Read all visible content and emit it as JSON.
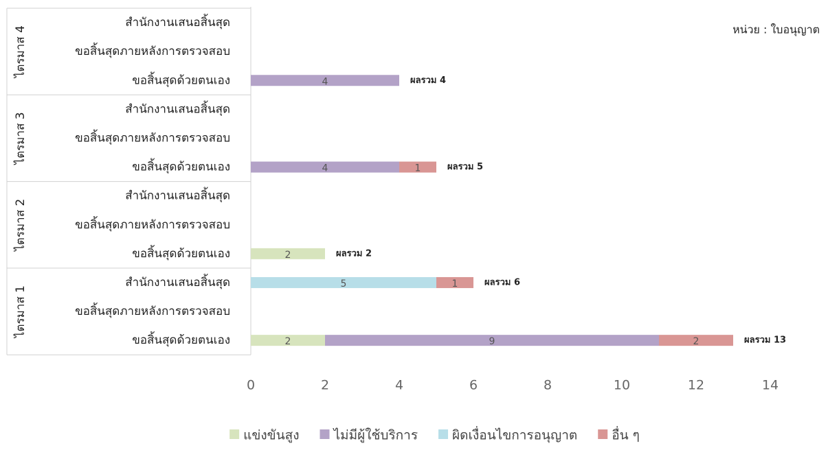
{
  "chart_data": {
    "type": "stacked_bar_horizontal",
    "unit_label": "หน่วย : ใบอนุญาต",
    "groups": [
      "ไตรมาส 4",
      "ไตรมาส 3",
      "ไตรมาส 2",
      "ไตรมาส 1"
    ],
    "categories": [
      "สำนักงานเสนอสิ้นสุด",
      "ขอสิ้นสุดภายหลังการตรวจสอบ",
      "ขอสิ้นสุดด้วยตนเอง",
      "สำนักงานเสนอสิ้นสุด",
      "ขอสิ้นสุดภายหลังการตรวจสอบ",
      "ขอสิ้นสุดด้วยตนเอง",
      "สำนักงานเสนอสิ้นสุด",
      "ขอสิ้นสุดภายหลังการตรวจสอบ",
      "ขอสิ้นสุดด้วยตนเอง",
      "สำนักงานเสนอสิ้นสุด",
      "ขอสิ้นสุดภายหลังการตรวจสอบ",
      "ขอสิ้นสุดด้วยตนเอง"
    ],
    "series": [
      {
        "name": "แข่งขันสูง",
        "color": "#d7e4bd",
        "values": [
          null,
          null,
          null,
          null,
          null,
          null,
          null,
          null,
          2,
          null,
          null,
          2
        ]
      },
      {
        "name": "ไม่มีผู้ใช้บริการ",
        "color": "#b3a2c7",
        "values": [
          null,
          null,
          4,
          null,
          null,
          4,
          null,
          null,
          null,
          null,
          null,
          9
        ]
      },
      {
        "name": "ผิดเงื่อนไขการอนุญาต",
        "color": "#b7dee8",
        "values": [
          null,
          null,
          null,
          null,
          null,
          null,
          null,
          null,
          null,
          5,
          null,
          null
        ]
      },
      {
        "name": "อื่น ๆ",
        "color": "#d99694",
        "values": [
          null,
          null,
          null,
          null,
          null,
          1,
          null,
          null,
          null,
          1,
          null,
          2
        ]
      }
    ],
    "total_labels": [
      null,
      null,
      "ผลรวม 4",
      null,
      null,
      "ผลรวม 5",
      null,
      null,
      "ผลรวม 2",
      "ผลรวม 6",
      null,
      "ผลรวม 13"
    ],
    "xlim": [
      0,
      14
    ],
    "xticks": [
      0,
      2,
      4,
      6,
      8,
      10,
      12,
      14
    ],
    "grid": false,
    "legend": "bottom"
  }
}
